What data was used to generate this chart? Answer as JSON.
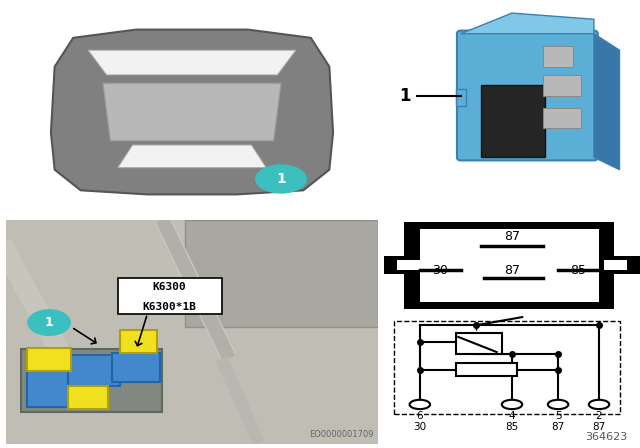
{
  "bg_color": "#f5f5f5",
  "white": "#ffffff",
  "black": "#000000",
  "teal": "#3bbfbf",
  "yellow": "#f0e020",
  "blue_relay": "#5bafd6",
  "blue_relay_dark": "#4090b8",
  "relay_black": "#2a2a2a",
  "relay_metal": "#a0a0a0",
  "car_body_color": "#808080",
  "car_roof_color": "#b8b8b8",
  "car_bg": "#e8e8e8",
  "eng_bg": "#b8b8b0",
  "part_number": "364623",
  "eo_number": "EO0000001709",
  "label_K6300": "K6300",
  "label_K6300_1B": "K6300*1B",
  "pin_top_label": "87",
  "pin_mid_left": "30",
  "pin_mid_mid": "87",
  "pin_mid_right": "85",
  "pin_bottom_numbers": [
    "6",
    "4",
    "5",
    "2"
  ],
  "pin_bottom_names": [
    "30",
    "85",
    "87",
    "87"
  ]
}
